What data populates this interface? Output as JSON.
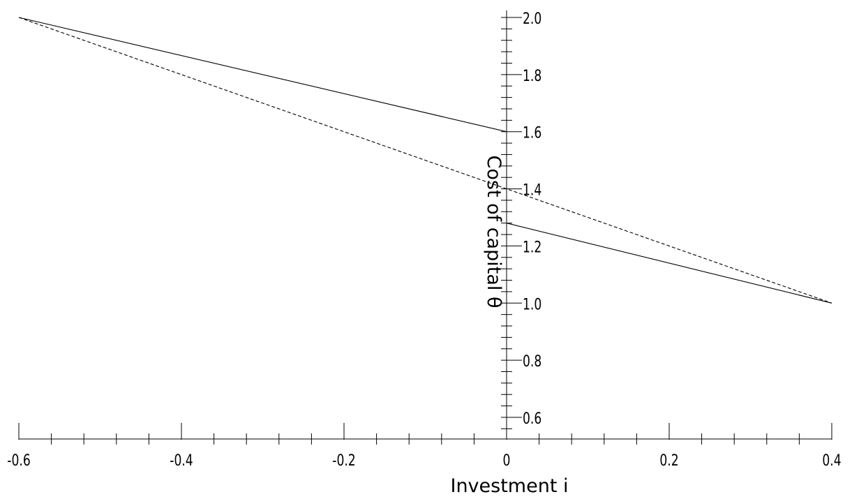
{
  "chart_data": {
    "type": "line",
    "title": "",
    "xlabel": "Investment i",
    "ylabel": "Cost of capital θ",
    "xlim": [
      -0.6,
      0.4
    ],
    "ylim": [
      0.55,
      2.0
    ],
    "grid": false,
    "x_ticks": {
      "major": [
        -0.6,
        -0.4,
        -0.2,
        0,
        0.2,
        0.4
      ],
      "major_labels": [
        "-0.6",
        "-0.4",
        "-0.2",
        "0",
        "0.2",
        "0.4"
      ],
      "minor_step": 0.04
    },
    "y_ticks": {
      "major": [
        0.6,
        0.8,
        1.0,
        1.2,
        1.4,
        1.6,
        1.8,
        2.0
      ],
      "major_labels": [
        "0.6",
        "0.8",
        "1.0",
        "1.2",
        "1.4",
        "1.6",
        "1.8",
        "2.0"
      ],
      "minor_step": 0.04
    },
    "series": [
      {
        "style": "solid",
        "color": "#000000",
        "segments": [
          [
            [
              -0.6,
              2.0
            ],
            [
              0,
              1.6
            ]
          ],
          [
            [
              0,
              1.28
            ],
            [
              0.4,
              1.0
            ]
          ]
        ]
      },
      {
        "style": "dashed",
        "color": "#000000",
        "segments": [
          [
            [
              -0.6,
              2.0
            ],
            [
              0.4,
              1.0
            ]
          ]
        ]
      }
    ]
  }
}
